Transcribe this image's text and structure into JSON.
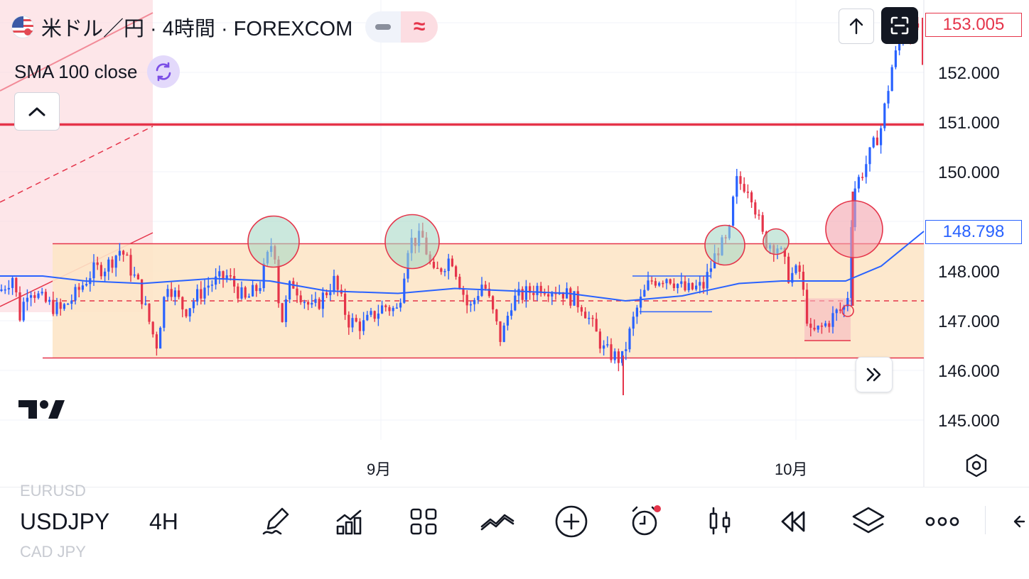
{
  "header": {
    "title": "米ドル／円 · 4時間 · FOREXCOM",
    "indicator": "SMA 100 close",
    "mode_icon": "≈"
  },
  "price_labels": {
    "current_price": "153.005",
    "sma_value": "148.798",
    "current_color": "#e5344a",
    "sma_color": "#2962ff"
  },
  "y_axis": [
    "152.000",
    "151.000",
    "150.000",
    "148.000",
    "147.000",
    "146.000",
    "145.000"
  ],
  "x_axis": [
    "9月",
    "10月"
  ],
  "toolbar": {
    "symbol": "USDJPY",
    "interval": "4H",
    "ghost_above": "EURUSD",
    "ghost_below": "CAD JPY",
    "tools": [
      "draw-tool-icon",
      "indicators-icon",
      "layouts-icon",
      "compare-icon",
      "add-icon",
      "alert-icon",
      "chart-type-icon",
      "replay-icon",
      "layers-icon",
      "more-icon"
    ]
  },
  "chart_data": {
    "type": "candlestick",
    "symbol": "USDJPY",
    "timeframe": "4H",
    "source": "FOREXCOM",
    "ylim": [
      144.5,
      153.6
    ],
    "up_color": "#2962ff",
    "down_color": "#e5344a",
    "x_ticks": [
      "9月",
      "10月"
    ],
    "close_path": [
      [
        0,
        147.6
      ],
      [
        18,
        147.9
      ],
      [
        28,
        147.1
      ],
      [
        40,
        147.7
      ],
      [
        60,
        147.4
      ],
      [
        85,
        147.2
      ],
      [
        105,
        147.5
      ],
      [
        130,
        148.0
      ],
      [
        150,
        148.1
      ],
      [
        170,
        148.45
      ],
      [
        195,
        147.7
      ],
      [
        220,
        146.5
      ],
      [
        235,
        147.8
      ],
      [
        260,
        147.2
      ],
      [
        290,
        147.7
      ],
      [
        320,
        147.9
      ],
      [
        345,
        147.4
      ],
      [
        365,
        147.7
      ],
      [
        385,
        148.7
      ],
      [
        395,
        146.9
      ],
      [
        410,
        147.8
      ],
      [
        440,
        147.2
      ],
      [
        470,
        147.8
      ],
      [
        490,
        147.0
      ],
      [
        510,
        146.9
      ],
      [
        540,
        147.3
      ],
      [
        560,
        147.2
      ],
      [
        575,
        148.6
      ],
      [
        595,
        148.65
      ],
      [
        610,
        147.9
      ],
      [
        635,
        148.3
      ],
      [
        660,
        147.2
      ],
      [
        680,
        147.8
      ],
      [
        705,
        146.6
      ],
      [
        720,
        147.4
      ],
      [
        760,
        147.7
      ],
      [
        790,
        147.6
      ],
      [
        820,
        147.3
      ],
      [
        850,
        146.4
      ],
      [
        875,
        146.2
      ],
      [
        895,
        147.2
      ],
      [
        915,
        147.8
      ],
      [
        940,
        147.9
      ],
      [
        965,
        147.6
      ],
      [
        990,
        147.7
      ],
      [
        1010,
        148.45
      ],
      [
        1025,
        148.6
      ],
      [
        1035,
        149.8
      ],
      [
        1055,
        149.7
      ],
      [
        1075,
        148.6
      ],
      [
        1095,
        148.5
      ],
      [
        1110,
        147.9
      ],
      [
        1125,
        148.0
      ],
      [
        1140,
        146.7
      ],
      [
        1160,
        146.9
      ],
      [
        1180,
        147.2
      ],
      [
        1192,
        147.3
      ],
      [
        1200,
        149.6
      ],
      [
        1220,
        150.2
      ],
      [
        1240,
        150.9
      ],
      [
        1255,
        152.1
      ],
      [
        1268,
        152.7
      ],
      [
        1285,
        152.8
      ],
      [
        1297,
        153.0
      ]
    ],
    "sma100": [
      [
        0,
        147.9
      ],
      [
        60,
        147.9
      ],
      [
        120,
        147.8
      ],
      [
        200,
        147.75
      ],
      [
        300,
        147.85
      ],
      [
        380,
        147.8
      ],
      [
        460,
        147.6
      ],
      [
        560,
        147.55
      ],
      [
        640,
        147.65
      ],
      [
        720,
        147.6
      ],
      [
        800,
        147.55
      ],
      [
        880,
        147.4
      ],
      [
        960,
        147.5
      ],
      [
        1040,
        147.75
      ],
      [
        1100,
        147.8
      ],
      [
        1190,
        147.8
      ],
      [
        1240,
        148.1
      ],
      [
        1300,
        148.8
      ]
    ],
    "range_box": {
      "top": 148.55,
      "bottom": 146.25
    },
    "horizontal_lines": [
      150.95,
      148.55,
      146.25
    ],
    "dashed_level": 147.4,
    "highlights": [
      {
        "x": 385,
        "y": 148.55,
        "fill": "#a8d8c6"
      },
      {
        "x": 580,
        "y": 148.55,
        "fill": "#a8d8c6"
      },
      {
        "x": 1020,
        "y": 148.55,
        "fill": "#a8d8c6"
      },
      {
        "x": 1092,
        "y": 148.55,
        "fill": "#a8d8c6"
      },
      {
        "x": 1202,
        "y": 148.8,
        "fill": "#f4a3ad"
      }
    ]
  }
}
